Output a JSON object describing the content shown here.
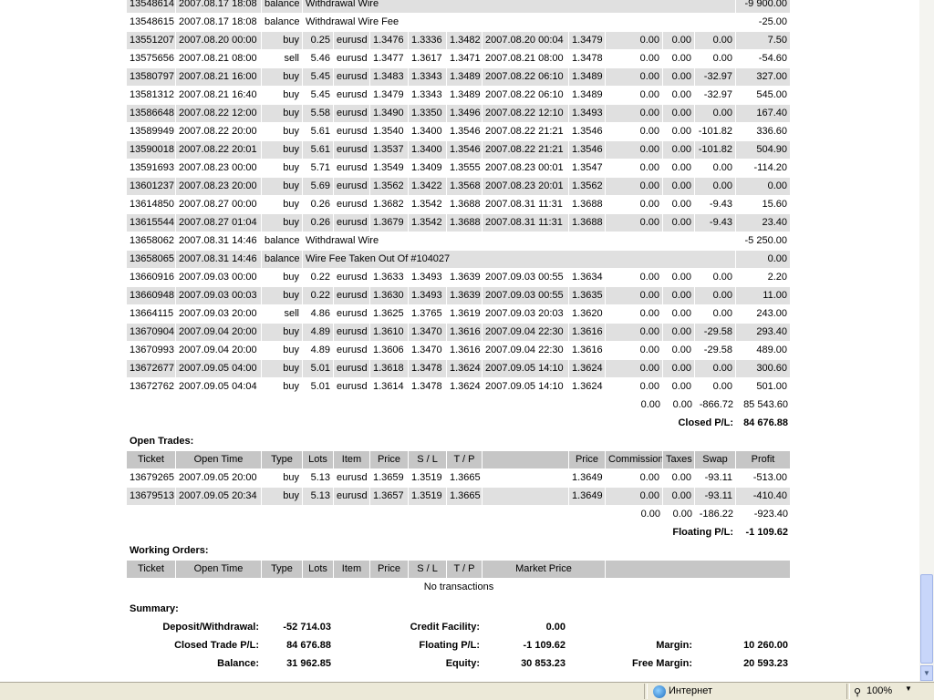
{
  "closed_trades": {
    "rows": [
      [
        "13548614",
        "2007.08.17 18:08",
        "balance",
        "Withdrawal Wire",
        "-9 900.00"
      ],
      [
        "13548615",
        "2007.08.17 18:08",
        "balance",
        "Withdrawal Wire Fee",
        "-25.00"
      ],
      [
        "13551207",
        "2007.08.20 00:00",
        "buy",
        "0.25",
        "eurusd",
        "1.3476",
        "1.3336",
        "1.3482",
        "2007.08.20 00:04",
        "1.3479",
        "0.00",
        "0.00",
        "0.00",
        "7.50"
      ],
      [
        "13575656",
        "2007.08.21 08:00",
        "sell",
        "5.46",
        "eurusd",
        "1.3477",
        "1.3617",
        "1.3471",
        "2007.08.21 08:00",
        "1.3478",
        "0.00",
        "0.00",
        "0.00",
        "-54.60"
      ],
      [
        "13580797",
        "2007.08.21 16:00",
        "buy",
        "5.45",
        "eurusd",
        "1.3483",
        "1.3343",
        "1.3489",
        "2007.08.22 06:10",
        "1.3489",
        "0.00",
        "0.00",
        "-32.97",
        "327.00"
      ],
      [
        "13581312",
        "2007.08.21 16:40",
        "buy",
        "5.45",
        "eurusd",
        "1.3479",
        "1.3343",
        "1.3489",
        "2007.08.22 06:10",
        "1.3489",
        "0.00",
        "0.00",
        "-32.97",
        "545.00"
      ],
      [
        "13586648",
        "2007.08.22 12:00",
        "buy",
        "5.58",
        "eurusd",
        "1.3490",
        "1.3350",
        "1.3496",
        "2007.08.22 12:10",
        "1.3493",
        "0.00",
        "0.00",
        "0.00",
        "167.40"
      ],
      [
        "13589949",
        "2007.08.22 20:00",
        "buy",
        "5.61",
        "eurusd",
        "1.3540",
        "1.3400",
        "1.3546",
        "2007.08.22 21:21",
        "1.3546",
        "0.00",
        "0.00",
        "-101.82",
        "336.60"
      ],
      [
        "13590018",
        "2007.08.22 20:01",
        "buy",
        "5.61",
        "eurusd",
        "1.3537",
        "1.3400",
        "1.3546",
        "2007.08.22 21:21",
        "1.3546",
        "0.00",
        "0.00",
        "-101.82",
        "504.90"
      ],
      [
        "13591693",
        "2007.08.23 00:00",
        "buy",
        "5.71",
        "eurusd",
        "1.3549",
        "1.3409",
        "1.3555",
        "2007.08.23 00:01",
        "1.3547",
        "0.00",
        "0.00",
        "0.00",
        "-114.20"
      ],
      [
        "13601237",
        "2007.08.23 20:00",
        "buy",
        "5.69",
        "eurusd",
        "1.3562",
        "1.3422",
        "1.3568",
        "2007.08.23 20:01",
        "1.3562",
        "0.00",
        "0.00",
        "0.00",
        "0.00"
      ],
      [
        "13614850",
        "2007.08.27 00:00",
        "buy",
        "0.26",
        "eurusd",
        "1.3682",
        "1.3542",
        "1.3688",
        "2007.08.31 11:31",
        "1.3688",
        "0.00",
        "0.00",
        "-9.43",
        "15.60"
      ],
      [
        "13615544",
        "2007.08.27 01:04",
        "buy",
        "0.26",
        "eurusd",
        "1.3679",
        "1.3542",
        "1.3688",
        "2007.08.31 11:31",
        "1.3688",
        "0.00",
        "0.00",
        "-9.43",
        "23.40"
      ],
      [
        "13658062",
        "2007.08.31 14:46",
        "balance",
        "Withdrawal Wire",
        "-5 250.00"
      ],
      [
        "13658065",
        "2007.08.31 14:46",
        "balance",
        "Wire Fee Taken Out Of #104027",
        "0.00"
      ],
      [
        "13660916",
        "2007.09.03 00:00",
        "buy",
        "0.22",
        "eurusd",
        "1.3633",
        "1.3493",
        "1.3639",
        "2007.09.03 00:55",
        "1.3634",
        "0.00",
        "0.00",
        "0.00",
        "2.20"
      ],
      [
        "13660948",
        "2007.09.03 00:03",
        "buy",
        "0.22",
        "eurusd",
        "1.3630",
        "1.3493",
        "1.3639",
        "2007.09.03 00:55",
        "1.3635",
        "0.00",
        "0.00",
        "0.00",
        "11.00"
      ],
      [
        "13664115",
        "2007.09.03 20:00",
        "sell",
        "4.86",
        "eurusd",
        "1.3625",
        "1.3765",
        "1.3619",
        "2007.09.03 20:03",
        "1.3620",
        "0.00",
        "0.00",
        "0.00",
        "243.00"
      ],
      [
        "13670904",
        "2007.09.04 20:00",
        "buy",
        "4.89",
        "eurusd",
        "1.3610",
        "1.3470",
        "1.3616",
        "2007.09.04 22:30",
        "1.3616",
        "0.00",
        "0.00",
        "-29.58",
        "293.40"
      ],
      [
        "13670993",
        "2007.09.04 20:00",
        "buy",
        "4.89",
        "eurusd",
        "1.3606",
        "1.3470",
        "1.3616",
        "2007.09.04 22:30",
        "1.3616",
        "0.00",
        "0.00",
        "-29.58",
        "489.00"
      ],
      [
        "13672677",
        "2007.09.05 04:00",
        "buy",
        "5.01",
        "eurusd",
        "1.3618",
        "1.3478",
        "1.3624",
        "2007.09.05 14:10",
        "1.3624",
        "0.00",
        "0.00",
        "0.00",
        "300.60"
      ],
      [
        "13672762",
        "2007.09.05 04:04",
        "buy",
        "5.01",
        "eurusd",
        "1.3614",
        "1.3478",
        "1.3624",
        "2007.09.05 14:10",
        "1.3624",
        "0.00",
        "0.00",
        "0.00",
        "501.00"
      ]
    ],
    "totals": [
      "0.00",
      "0.00",
      "-866.72",
      "85 543.60"
    ],
    "result_label": "Closed P/L:",
    "result_value": "84 676.88"
  },
  "open_trades": {
    "title": "Open Trades:",
    "headers": [
      "Ticket",
      "Open Time",
      "Type",
      "Lots",
      "Item",
      "Price",
      "S / L",
      "T / P",
      "Price",
      "Commission",
      "Taxes",
      "Swap",
      "Profit"
    ],
    "rows": [
      [
        "13679265",
        "2007.09.05 20:00",
        "buy",
        "5.13",
        "eurusd",
        "1.3659",
        "1.3519",
        "1.3665",
        "1.3649",
        "0.00",
        "0.00",
        "-93.11",
        "-513.00"
      ],
      [
        "13679513",
        "2007.09.05 20:34",
        "buy",
        "5.13",
        "eurusd",
        "1.3657",
        "1.3519",
        "1.3665",
        "1.3649",
        "0.00",
        "0.00",
        "-93.11",
        "-410.40"
      ]
    ],
    "totals": [
      "0.00",
      "0.00",
      "-186.22",
      "-923.40"
    ],
    "result_label": "Floating P/L:",
    "result_value": "-1 109.62"
  },
  "working_orders": {
    "title": "Working Orders:",
    "headers": [
      "Ticket",
      "Open Time",
      "Type",
      "Lots",
      "Item",
      "Price",
      "S / L",
      "T / P",
      "Market Price"
    ],
    "empty_text": "No transactions"
  },
  "summary": {
    "title": "Summary:",
    "rows": [
      [
        [
          "Deposit/Withdrawal:",
          "-52 714.03"
        ],
        [
          "Credit Facility:",
          "0.00"
        ]
      ],
      [
        [
          "Closed Trade P/L:",
          "84 676.88"
        ],
        [
          "Floating P/L:",
          "-1 109.62"
        ],
        [
          "Margin:",
          "10 260.00"
        ]
      ],
      [
        [
          "Balance:",
          "31 962.85"
        ],
        [
          "Equity:",
          "30 853.23"
        ],
        [
          "Free Margin:",
          "20 593.23"
        ]
      ]
    ]
  },
  "status_bar": {
    "zone": "Интернет",
    "zoom": "100%"
  }
}
